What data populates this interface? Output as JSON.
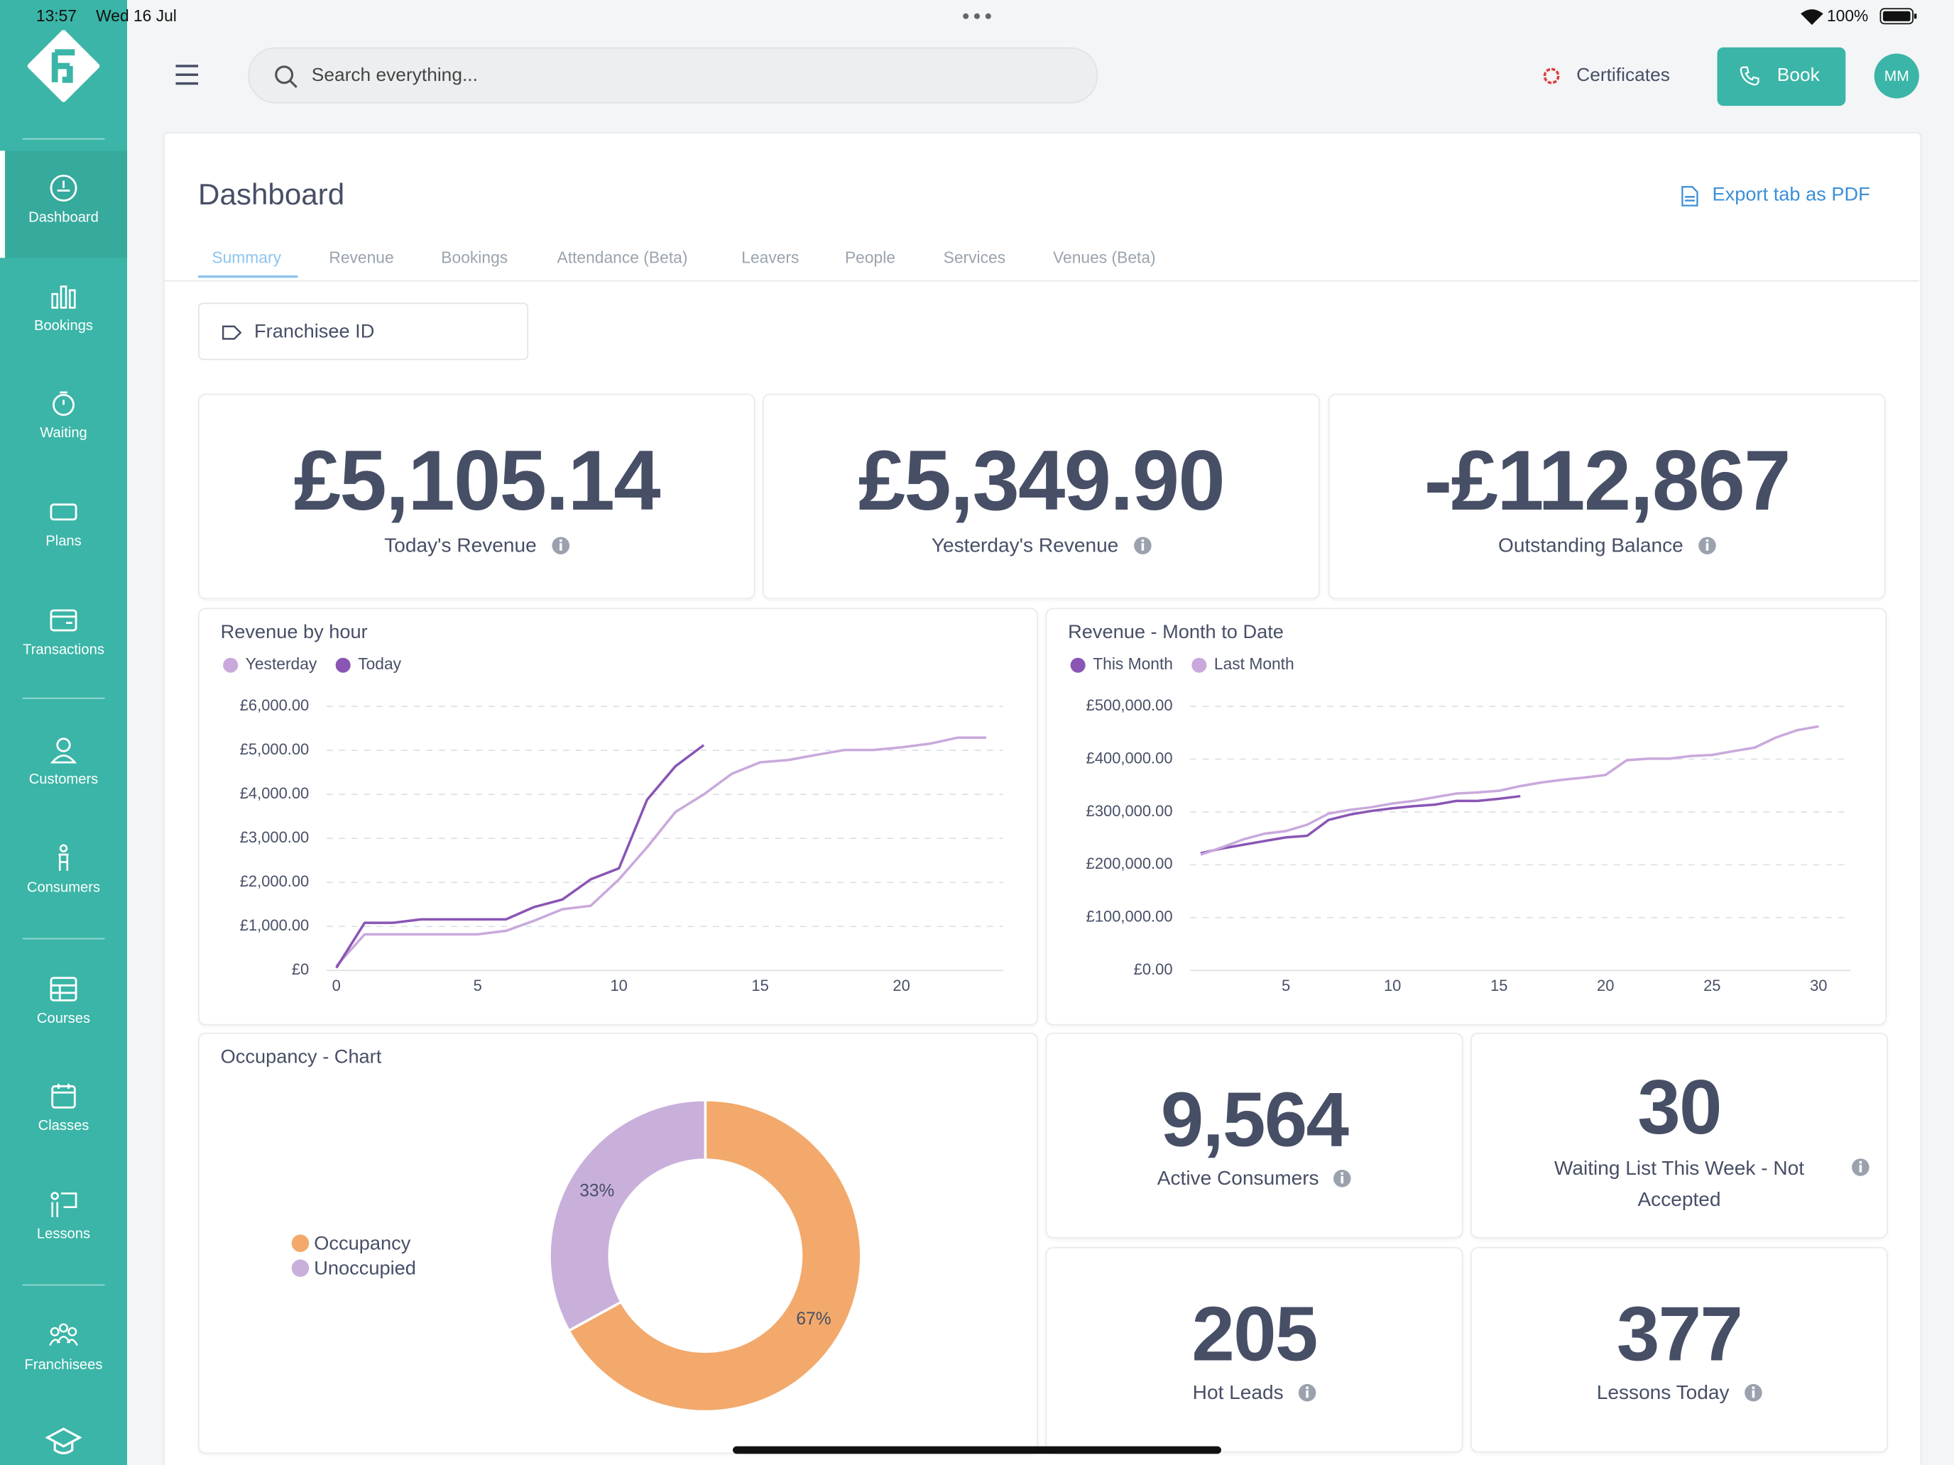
{
  "status_bar": {
    "time": "13:57",
    "date": "Wed 16 Jul",
    "battery": "100%"
  },
  "sidebar": {
    "items": [
      "Dashboard",
      "Bookings",
      "Waiting",
      "Plans",
      "Transactions",
      "Customers",
      "Consumers",
      "Courses",
      "Classes",
      "Lessons",
      "Franchisees"
    ],
    "active": "Dashboard"
  },
  "header": {
    "search_placeholder": "Search everything...",
    "certificates": "Certificates",
    "book": "Book",
    "avatar": "MM"
  },
  "dashboard": {
    "title": "Dashboard",
    "export": "Export tab as PDF",
    "tabs": [
      "Summary",
      "Revenue",
      "Bookings",
      "Attendance (Beta)",
      "Leavers",
      "People",
      "Services",
      "Venues (Beta)"
    ],
    "active_tab": "Summary",
    "filter": "Franchisee ID"
  },
  "kpis": [
    {
      "value": "£5,105.14",
      "label": "Today's Revenue"
    },
    {
      "value": "£5,349.90",
      "label": "Yesterday's Revenue"
    },
    {
      "value": "-£112,867",
      "label": "Outstanding Balance"
    }
  ],
  "chart_data": [
    {
      "type": "line",
      "title": "Revenue by hour",
      "x": [
        0,
        1,
        2,
        3,
        4,
        5,
        6,
        7,
        8,
        9,
        10,
        11,
        12,
        13,
        14,
        15,
        16,
        17,
        18,
        19,
        20,
        21,
        22,
        23
      ],
      "series": [
        {
          "name": "Yesterday",
          "color": "#c9a9dc",
          "values": [
            100,
            820,
            820,
            820,
            820,
            820,
            900,
            1130,
            1390,
            1470,
            2070,
            2800,
            3600,
            4000,
            4470,
            4730,
            4780,
            4900,
            5010,
            5010,
            5070,
            5150,
            5290,
            5290
          ]
        },
        {
          "name": "Today",
          "color": "#8a55b4",
          "values": [
            60,
            1080,
            1080,
            1160,
            1160,
            1160,
            1160,
            1440,
            1610,
            2070,
            2320,
            3880,
            4640,
            5120,
            null,
            null,
            null,
            null,
            null,
            null,
            null,
            null,
            null,
            null
          ]
        }
      ],
      "xlim": [
        -0.35,
        23.6
      ],
      "xticks": [
        0,
        5,
        10,
        15,
        20
      ],
      "ylim": [
        0,
        6000
      ],
      "yticks": [
        {
          "value": 0,
          "label": "£0"
        },
        {
          "value": 1000,
          "label": "£1,000.00"
        },
        {
          "value": 2000,
          "label": "£2,000.00"
        },
        {
          "value": 3000,
          "label": "£3,000.00"
        },
        {
          "value": 4000,
          "label": "£4,000.00"
        },
        {
          "value": 5000,
          "label": "£5,000.00"
        },
        {
          "value": 6000,
          "label": "£6,000.00"
        }
      ],
      "grid": true
    },
    {
      "type": "line",
      "title": "Revenue - Month to Date",
      "x": [
        1,
        2,
        3,
        4,
        5,
        6,
        7,
        8,
        9,
        10,
        11,
        12,
        13,
        14,
        15,
        16,
        17,
        18,
        19,
        20,
        21,
        22,
        23,
        24,
        25,
        26,
        27,
        28,
        29,
        30
      ],
      "series": [
        {
          "name": "This Month",
          "color": "#8a55b4",
          "values": [
            222000,
            231000,
            238000,
            245000,
            252000,
            255000,
            285000,
            295000,
            302000,
            307000,
            311000,
            314000,
            321000,
            321000,
            325000,
            330000,
            null,
            null,
            null,
            null,
            null,
            null,
            null,
            null,
            null,
            null,
            null,
            null,
            null,
            null
          ]
        },
        {
          "name": "Last Month",
          "color": "#c9a9dc",
          "values": [
            219000,
            233000,
            248000,
            259000,
            264000,
            276000,
            297000,
            304000,
            309000,
            316000,
            321000,
            328000,
            335000,
            337000,
            340000,
            349000,
            356000,
            361000,
            365000,
            370000,
            398000,
            401000,
            401000,
            406000,
            408000,
            415000,
            422000,
            441000,
            455000,
            462000
          ]
        }
      ],
      "xlim": [
        0.5,
        31.5
      ],
      "xticks": [
        5,
        10,
        15,
        20,
        25,
        30
      ],
      "ylim": [
        0,
        500000
      ],
      "yticks": [
        {
          "value": 0,
          "label": "£0.00"
        },
        {
          "value": 100000,
          "label": "£100,000.00"
        },
        {
          "value": 200000,
          "label": "£200,000.00"
        },
        {
          "value": 300000,
          "label": "£300,000.00"
        },
        {
          "value": 400000,
          "label": "£400,000.00"
        },
        {
          "value": 500000,
          "label": "£500,000.00"
        }
      ],
      "grid": true
    },
    {
      "type": "pie",
      "title": "Occupancy - Chart",
      "categories": [
        "Occupancy",
        "Unoccupied"
      ],
      "values": [
        67,
        33
      ],
      "value_labels": [
        "67%",
        "33%"
      ],
      "colors": [
        "#f2a96b",
        "#c9b0db"
      ]
    }
  ],
  "stats": [
    {
      "value": "9,564",
      "label": "Active Consumers"
    },
    {
      "value": "30",
      "label": "Waiting List This Week - Not Accepted"
    },
    {
      "value": "205",
      "label": "Hot Leads"
    },
    {
      "value": "377",
      "label": "Lessons Today"
    }
  ]
}
